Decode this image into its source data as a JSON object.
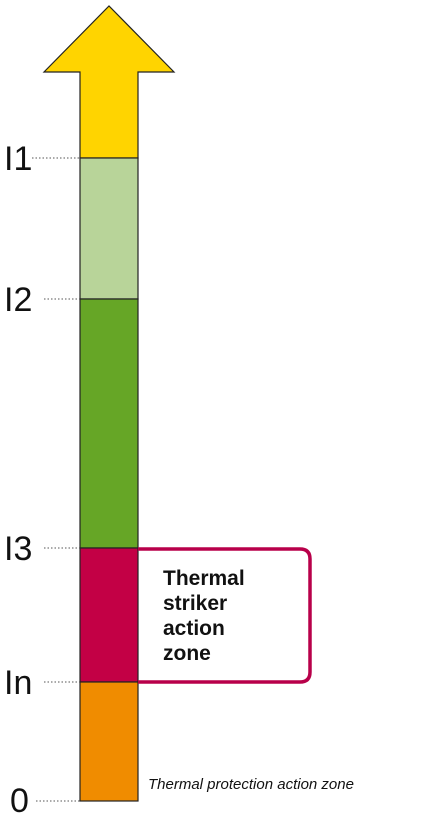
{
  "levels": {
    "i1": "I1",
    "i2": "I2",
    "i3": "I3",
    "in": "In",
    "zero": "0"
  },
  "callout": {
    "line1": "Thermal",
    "line2": "striker",
    "line3": "action",
    "line4": "zone"
  },
  "caption": "Thermal protection action zone",
  "colors": {
    "arrow": "#FFD400",
    "light_green": "#B8D499",
    "green": "#66A626",
    "crimson": "#C30045",
    "orange": "#F08C00",
    "callout_border": "#B8004A",
    "outline": "#222222"
  }
}
